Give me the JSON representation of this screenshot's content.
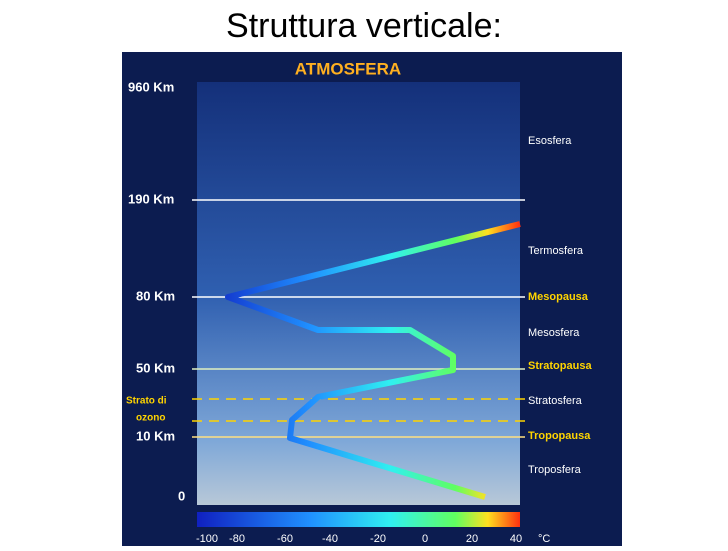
{
  "header": {
    "title": "Struttura verticale:"
  },
  "diagram": {
    "title": "ATMOSFERA",
    "altitudes": [
      "960 Km",
      "190 Km",
      "80 Km",
      "50 Km",
      "10 Km",
      "0"
    ],
    "ozone": [
      "Strato di",
      "ozono"
    ],
    "layers": [
      "Esosfera",
      "Termosfera",
      "Mesopausa",
      "Mesosfera",
      "Stratopausa",
      "Stratosfera",
      "Tropopausa",
      "Troposfera"
    ],
    "scale": [
      "-100",
      "-80",
      "-60",
      "-40",
      "-20",
      "0",
      "20",
      "40"
    ],
    "unit": "°C"
  }
}
